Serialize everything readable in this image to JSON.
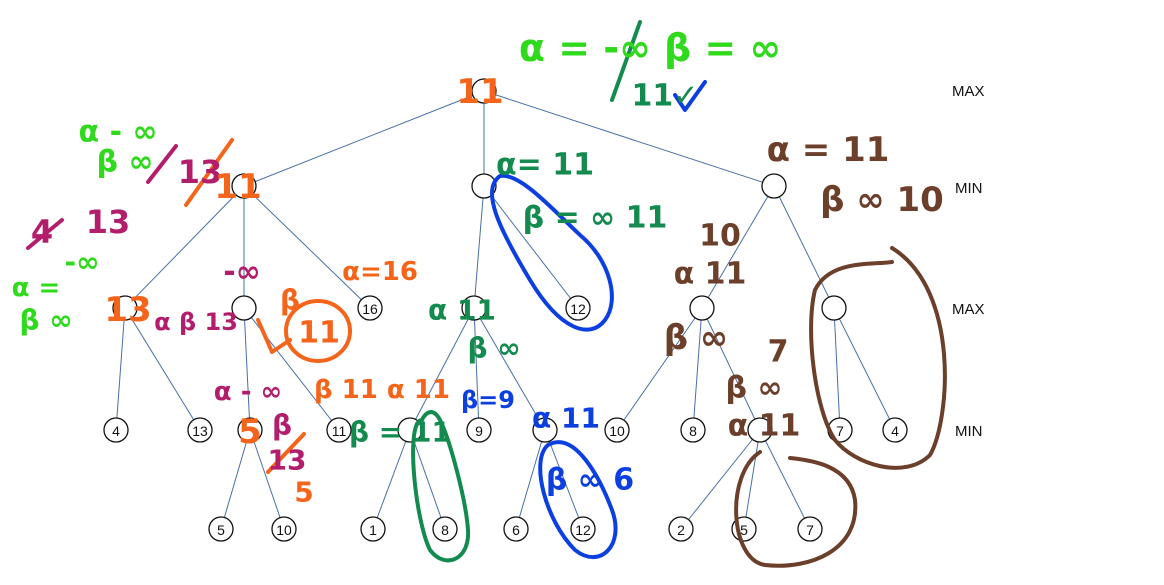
{
  "level_labels": [
    "MAX",
    "MIN",
    "MAX",
    "MIN"
  ],
  "colors": {
    "edge": "#4a6fa5",
    "green": "#2fd91c",
    "orange": "#f4641a",
    "magenta": "#b21e6b",
    "darkgreen": "#138a4e",
    "blue": "#0b3fe0",
    "brown": "#6b3f2a"
  },
  "leaf_values": [
    "4",
    "13",
    "5",
    "10",
    "11",
    "1",
    "8",
    "9",
    "6",
    "12",
    "10",
    "8",
    "2",
    "5",
    "7",
    "7",
    "4"
  ],
  "visible_node_values": [
    "16",
    "12"
  ],
  "annotations": {
    "root_alpha_beta": "α = -∞ β = ∞",
    "root_result": "11✓",
    "root_value": "11",
    "min_left_alpha": "α - ∞",
    "min_left_beta": "β ∞",
    "min_left_crossed": "13",
    "min_left_value": "11",
    "left_side_4": "4",
    "left_side_13": "13",
    "left_side_neg_inf": "-∞",
    "left_side_alpha": "α =",
    "left_side_beta": "β ∞",
    "maxA_value": "13",
    "maxA_alpha_beta": "α β 13",
    "maxB_alpha": "-∞",
    "maxB_beta": "β",
    "maxB_value": "11",
    "min_sub_alpha": "α - ∞",
    "min_sub_beta": "β",
    "min_sub_value": "5",
    "min_sub_crossed_beta": "13",
    "min_sub_beta_new": "5",
    "maxC_alpha_label": "α=16",
    "min_center_alpha": "α= 11",
    "min_center_beta": "β = ∞ 11",
    "maxD_alpha": "α 11",
    "maxD_beta": "β ∞",
    "minE_alpha_beta": "β 11 α 11",
    "minE_beta": "β = 11",
    "minF_beta": "β=9",
    "minG_alpha": "α 11",
    "minG_beta": "β ∞ 6",
    "min_right_alpha": "α = 11",
    "min_right_beta": "β ∞ 10",
    "maxR1_label": "10",
    "maxR1_alpha": "α 11",
    "maxR1_beta": "β ∞",
    "minR_beta_crossed": "7",
    "minR_beta": "β ∞",
    "minR_alpha": "α 11"
  }
}
